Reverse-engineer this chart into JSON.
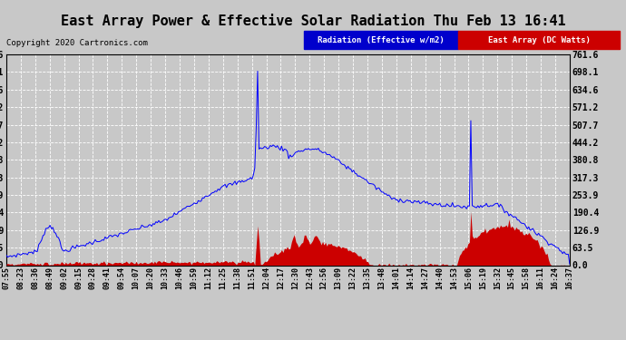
{
  "title": "East Array Power & Effective Solar Radiation Thu Feb 13 16:41",
  "copyright": "Copyright 2020 Cartronics.com",
  "legend_blue": "Radiation (Effective w/m2)",
  "legend_red": "East Array (DC Watts)",
  "yticks": [
    0.0,
    63.5,
    126.9,
    190.4,
    253.9,
    317.3,
    380.8,
    444.2,
    507.7,
    571.2,
    634.6,
    698.1,
    761.6
  ],
  "ymax": 761.6,
  "ymin": 0.0,
  "bg_color": "#c8c8c8",
  "plot_bg_color": "#c8c8c8",
  "grid_color": "#ffffff",
  "blue_color": "#0000ff",
  "red_color": "#cc0000",
  "title_fontsize": 11,
  "xtick_labels": [
    "07:55",
    "08:23",
    "08:36",
    "08:49",
    "09:02",
    "09:15",
    "09:28",
    "09:41",
    "09:54",
    "10:07",
    "10:20",
    "10:33",
    "10:46",
    "10:59",
    "11:12",
    "11:25",
    "11:38",
    "11:51",
    "12:04",
    "12:17",
    "12:30",
    "12:43",
    "12:56",
    "13:09",
    "13:22",
    "13:35",
    "13:48",
    "14:01",
    "14:14",
    "14:27",
    "14:40",
    "14:53",
    "15:06",
    "15:19",
    "15:32",
    "15:45",
    "15:58",
    "16:11",
    "16:24",
    "16:37"
  ],
  "n_points": 400
}
